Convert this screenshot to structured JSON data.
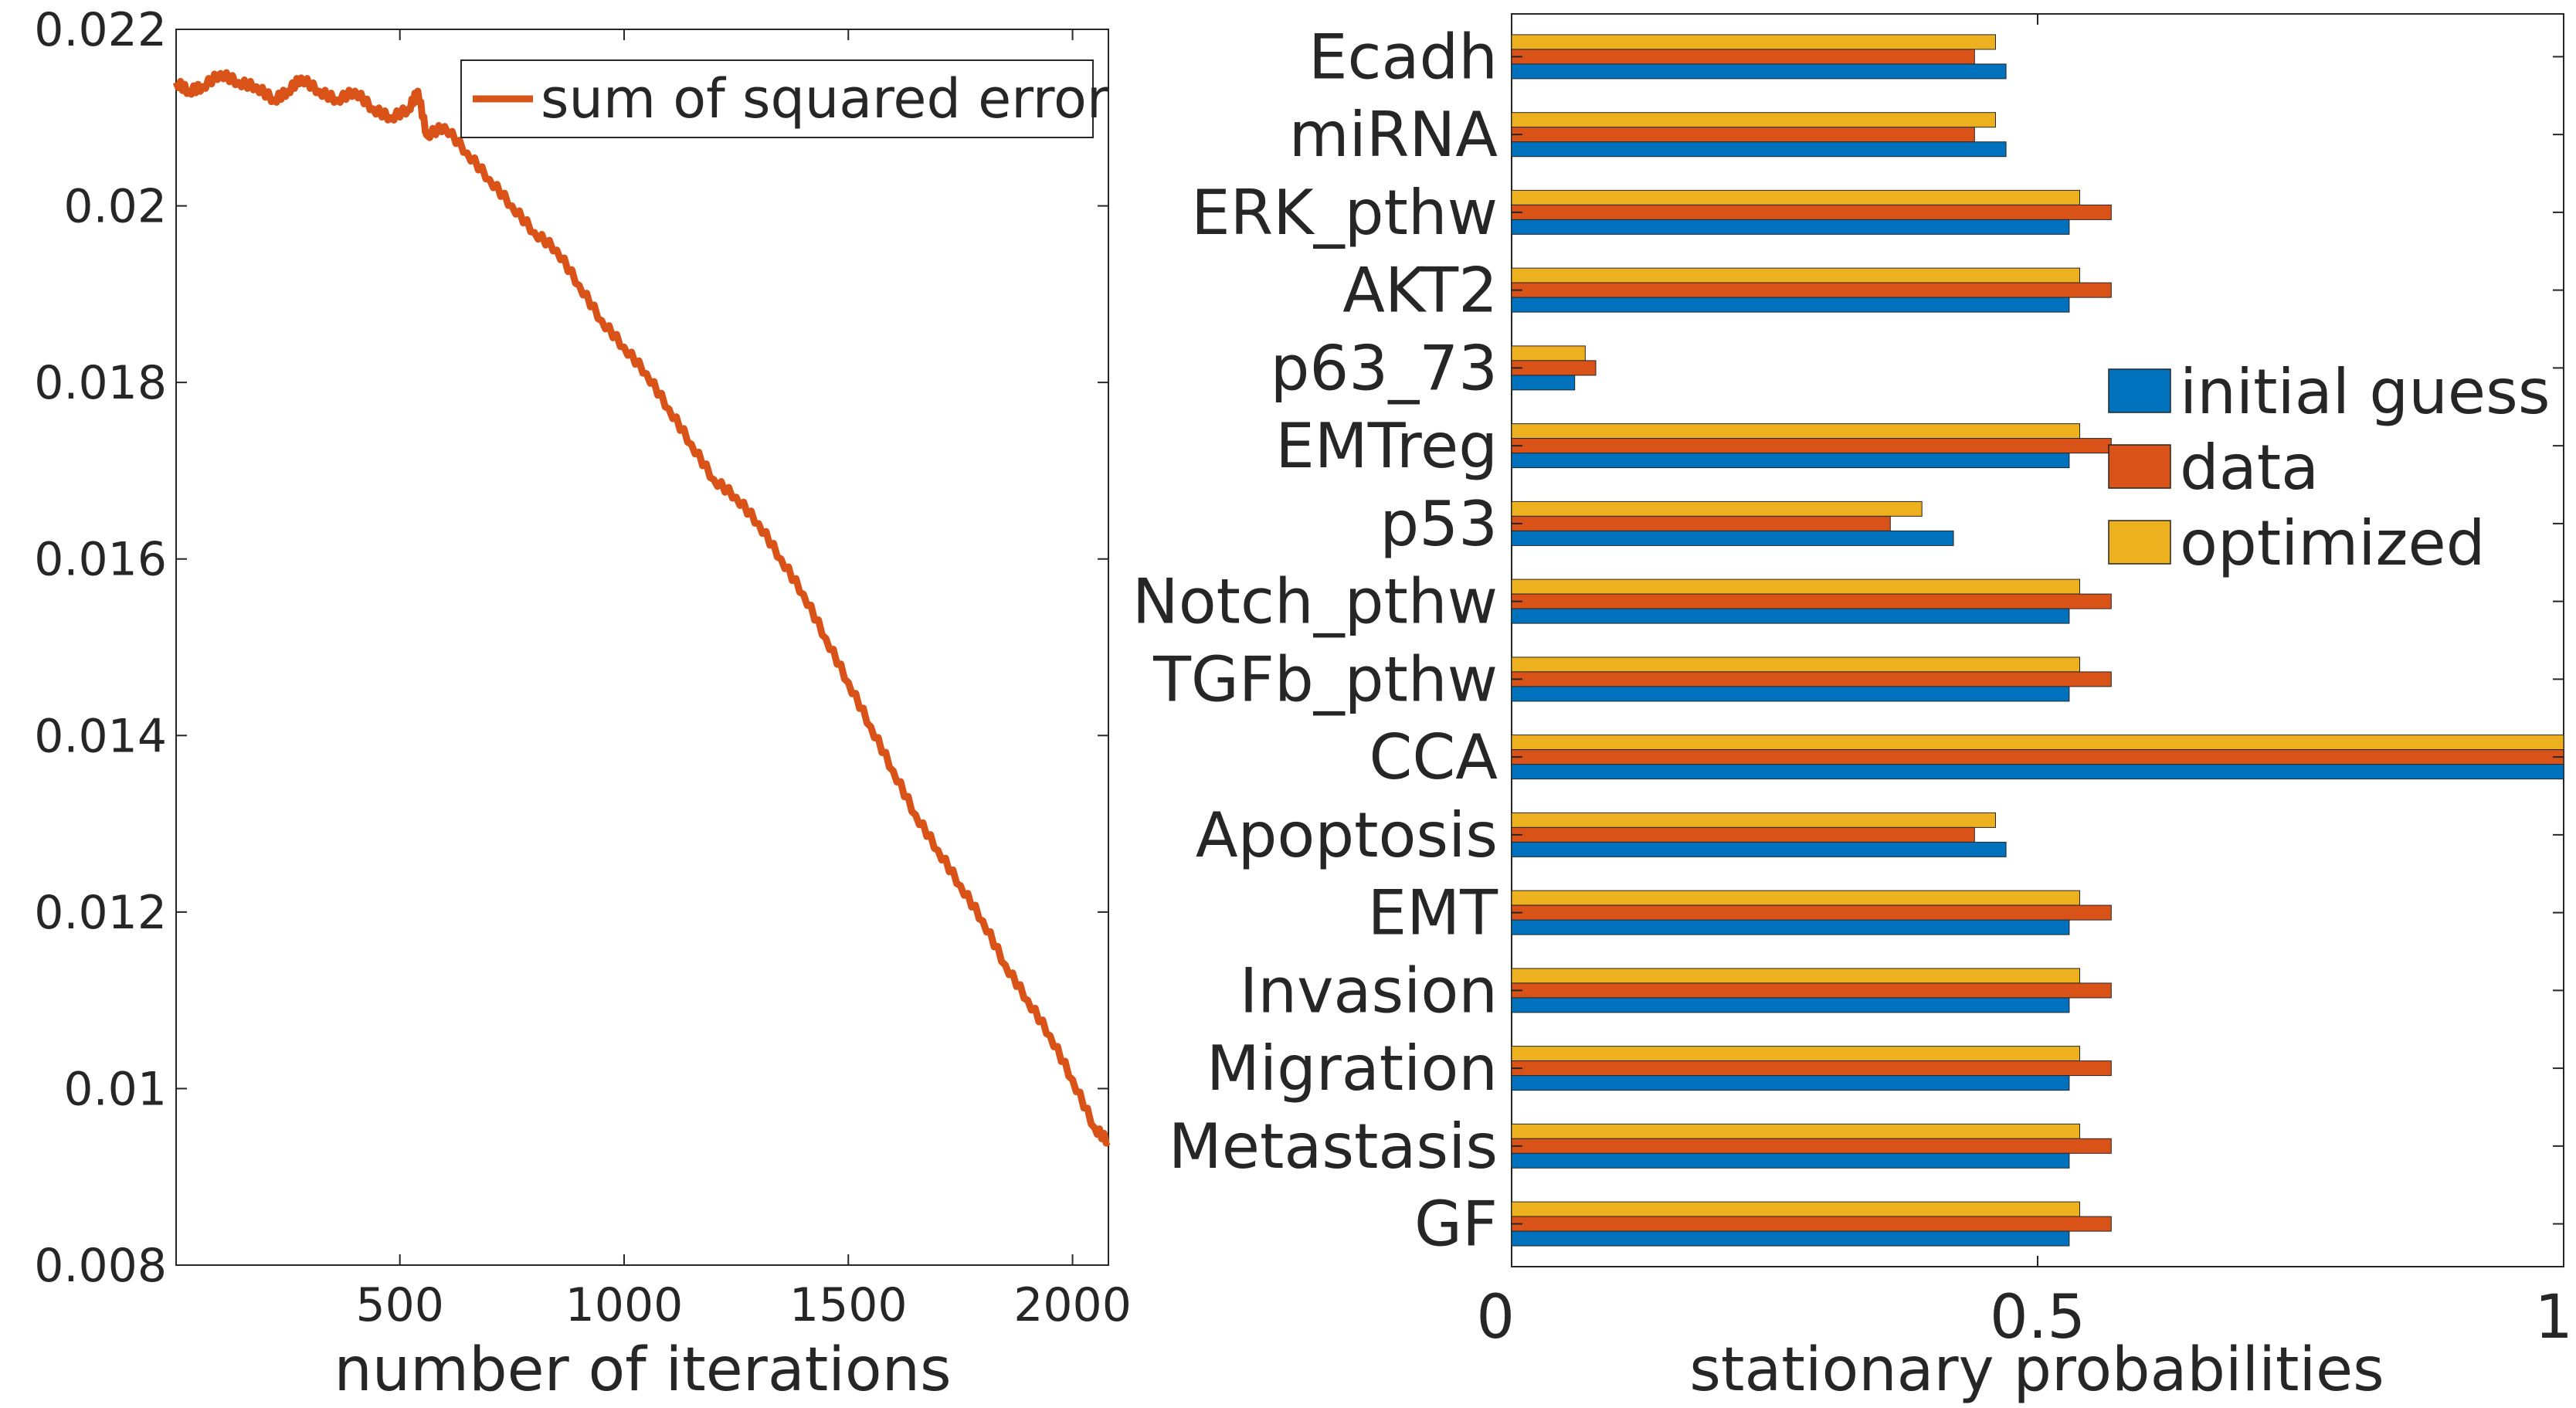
{
  "chart_data": [
    {
      "type": "line",
      "title": "",
      "xlabel": "number of iterations",
      "ylabel": "",
      "xlim": [
        1,
        2080
      ],
      "ylim": [
        0.008,
        0.022
      ],
      "xticks": [
        500,
        1000,
        1500,
        2000
      ],
      "xtick_labels": [
        "500",
        "1000",
        "1500",
        "2000"
      ],
      "yticks": [
        0.008,
        0.01,
        0.012,
        0.014,
        0.016,
        0.018,
        0.02,
        0.022
      ],
      "ytick_labels": [
        "0.008",
        "0.01",
        "0.012",
        "0.014",
        "0.016",
        "0.018",
        "0.02",
        "0.022"
      ],
      "grid": false,
      "legend_position": "top-right",
      "series": [
        {
          "name": "sum of squared error",
          "color": "#D95319",
          "x": [
            1,
            30,
            60,
            100,
            140,
            180,
            220,
            250,
            280,
            320,
            360,
            400,
            440,
            480,
            520,
            540,
            560,
            600,
            650,
            700,
            750,
            800,
            850,
            900,
            950,
            1000,
            1050,
            1100,
            1150,
            1200,
            1250,
            1300,
            1350,
            1400,
            1450,
            1500,
            1550,
            1600,
            1650,
            1700,
            1750,
            1800,
            1850,
            1900,
            1950,
            2000,
            2050,
            2080
          ],
          "y": [
            0.0214,
            0.0213,
            0.02135,
            0.0215,
            0.0214,
            0.02135,
            0.0212,
            0.0213,
            0.02145,
            0.0213,
            0.0212,
            0.0213,
            0.0211,
            0.021,
            0.0211,
            0.0213,
            0.0208,
            0.0209,
            0.0206,
            0.0203,
            0.02,
            0.0197,
            0.0195,
            0.0191,
            0.0187,
            0.0184,
            0.0181,
            0.0177,
            0.0173,
            0.0169,
            0.0167,
            0.0164,
            0.016,
            0.0156,
            0.0151,
            0.0146,
            0.0141,
            0.0136,
            0.0131,
            0.0127,
            0.0123,
            0.0119,
            0.0114,
            0.011,
            0.0106,
            0.0101,
            0.00955,
            0.0094
          ]
        }
      ]
    },
    {
      "type": "bar",
      "orientation": "horizontal",
      "title": "",
      "xlabel": "stationary probabilities",
      "ylabel": "",
      "xlim": [
        0,
        1
      ],
      "xticks": [
        0,
        0.5,
        1
      ],
      "xtick_labels": [
        "0",
        "0.5",
        "1"
      ],
      "grid": false,
      "legend_position": "right",
      "categories": [
        "Ecadh",
        "miRNA",
        "ERK_pthw",
        "AKT2",
        "p63_73",
        "EMTreg",
        "p53",
        "Notch_pthw",
        "TGFb_pthw",
        "CCA",
        "Apoptosis",
        "EMT",
        "Invasion",
        "Migration",
        "Metastasis",
        "GF"
      ],
      "series": [
        {
          "name": "initial guess",
          "color": "#0072BD",
          "values": [
            0.47,
            0.47,
            0.53,
            0.53,
            0.06,
            0.53,
            0.42,
            0.53,
            0.53,
            1.0,
            0.47,
            0.53,
            0.53,
            0.53,
            0.53,
            0.53
          ]
        },
        {
          "name": "data",
          "color": "#D95319",
          "values": [
            0.44,
            0.44,
            0.57,
            0.57,
            0.08,
            0.57,
            0.36,
            0.57,
            0.57,
            1.0,
            0.44,
            0.57,
            0.57,
            0.57,
            0.57,
            0.57
          ]
        },
        {
          "name": "optimized",
          "color": "#EDB120",
          "values": [
            0.46,
            0.46,
            0.54,
            0.54,
            0.07,
            0.54,
            0.39,
            0.54,
            0.54,
            1.0,
            0.46,
            0.54,
            0.54,
            0.54,
            0.54,
            0.54
          ]
        }
      ]
    }
  ]
}
